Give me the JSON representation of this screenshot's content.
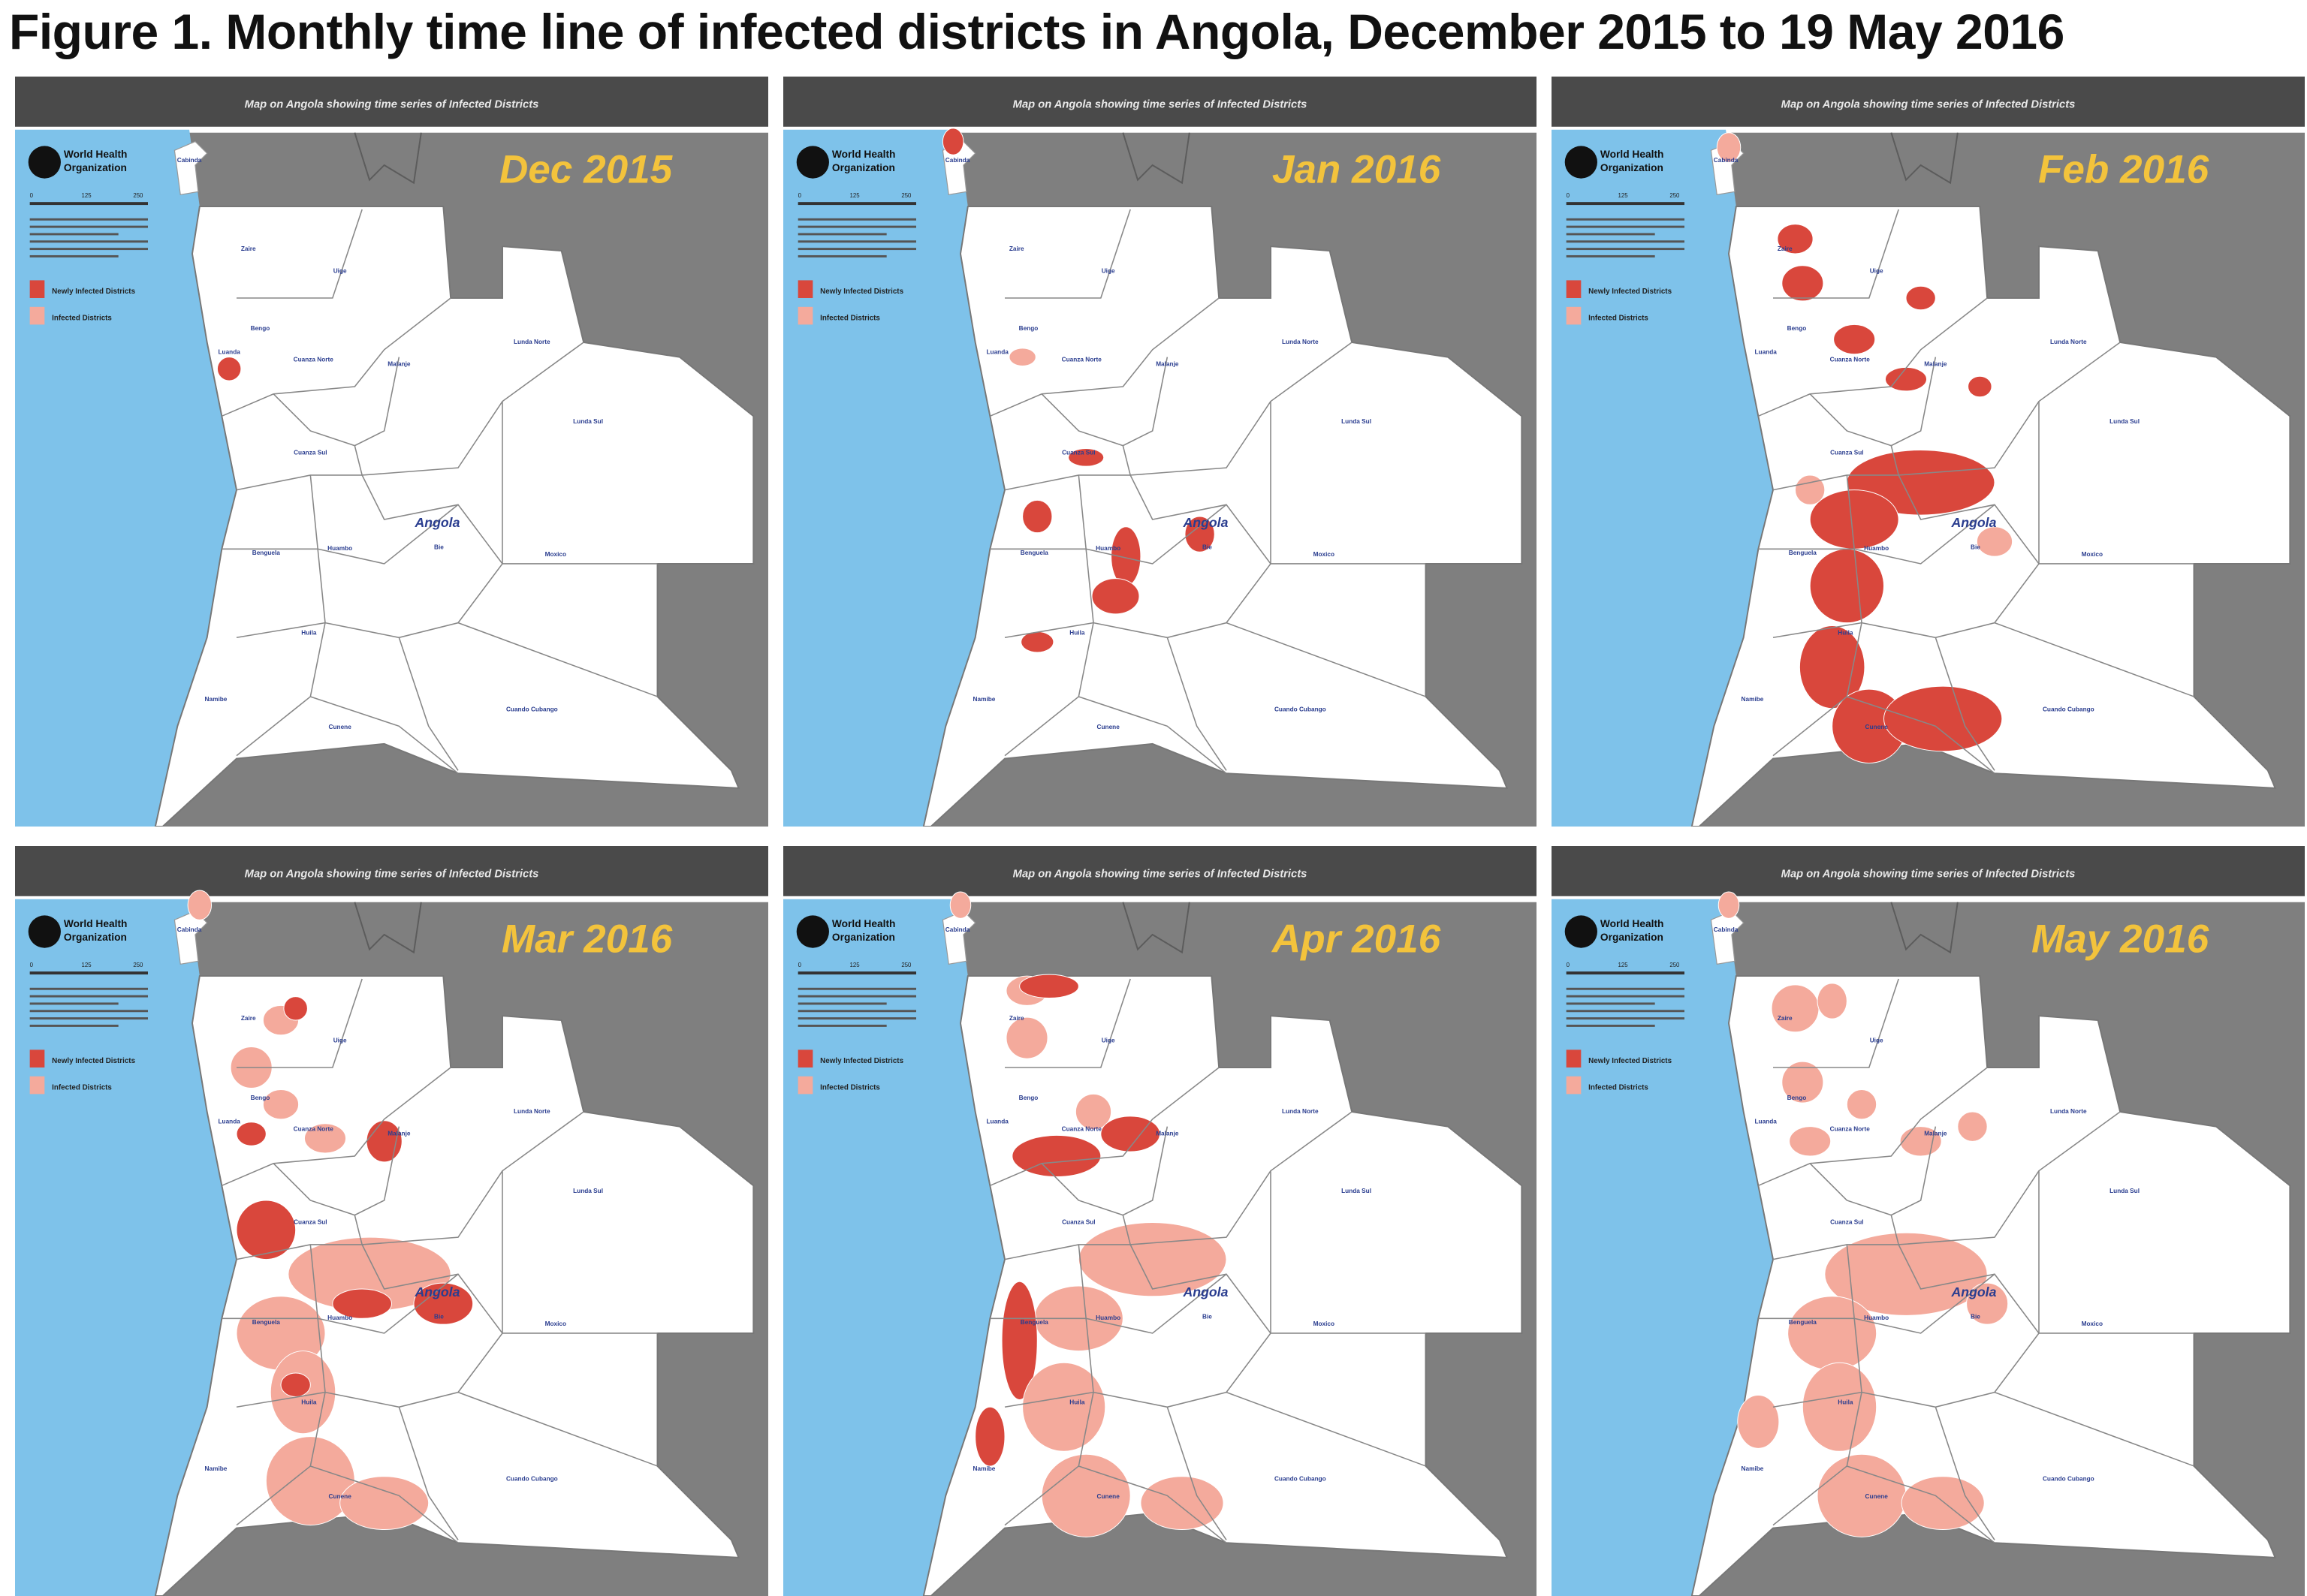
{
  "figure_title": "Figure 1. Monthly time line of infected districts in Angola, December 2015 to 19 May 2016",
  "panel_header": "Map on Angola showing time series of Infected Districts",
  "logo_text": [
    "World Health",
    "Organization"
  ],
  "legend": {
    "newly_infected": "Newly Infected Districts",
    "infected": "Infected Districts"
  },
  "scale_ticks": [
    "0",
    "125",
    "250"
  ],
  "country_label": "Angola",
  "provinces": [
    "Cabinda",
    "Zaire",
    "Uige",
    "Bengo",
    "Luanda",
    "Cuanza Norte",
    "Malanje",
    "Lunda Norte",
    "Lunda Sul",
    "Cuanza Sul",
    "Huambo",
    "Benguela",
    "Bie",
    "Moxico",
    "Huila",
    "Namibe",
    "Cunene",
    "Cuando Cubango"
  ],
  "panels": [
    {
      "month": "Dec 2015"
    },
    {
      "month": "Jan 2016"
    },
    {
      "month": "Feb 2016"
    },
    {
      "month": "Mar 2016"
    },
    {
      "month": "Apr 2016"
    },
    {
      "month": "May 2016"
    }
  ],
  "colors": {
    "newly_infected": "#d9473c",
    "infected": "#f4aa9c",
    "sea": "#7ec2ea",
    "neighbours": "#7f7f7f",
    "header_bar": "#4a4a4a",
    "month_label": "#f3c33c",
    "province_label": "#2a3d8f"
  }
}
